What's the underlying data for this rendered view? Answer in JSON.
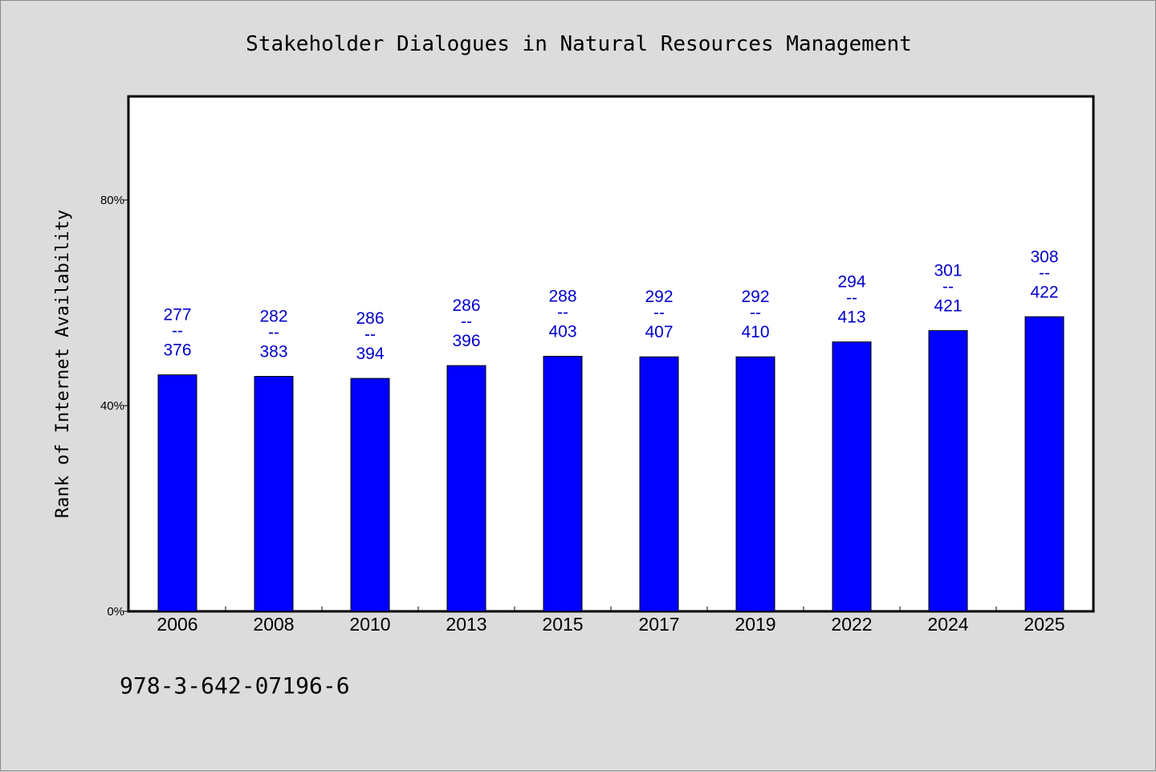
{
  "chart_data": {
    "type": "bar",
    "title": "Stakeholder Dialogues in Natural Resources Management",
    "ylabel": "Rank of Internet Availability",
    "xlabel": "",
    "categories": [
      "2006",
      "2008",
      "2010",
      "2013",
      "2015",
      "2017",
      "2019",
      "2022",
      "2024",
      "2025"
    ],
    "values": [
      46,
      45.7,
      45.3,
      47.8,
      49.6,
      49.5,
      49.5,
      52.4,
      54.6,
      57.3
    ],
    "labels_top": [
      "277",
      "282",
      "286",
      "286",
      "288",
      "292",
      "292",
      "294",
      "301",
      "308"
    ],
    "labels_sep": "--",
    "labels_bottom": [
      "376",
      "383",
      "394",
      "396",
      "403",
      "407",
      "410",
      "413",
      "421",
      "422"
    ],
    "ylim": [
      0,
      100
    ],
    "yticks": [
      0,
      40,
      80
    ],
    "ytick_labels": [
      "0%",
      "40%",
      "80%"
    ],
    "bar_color": "#0000ff",
    "label_color": "#0000cc",
    "grid": false
  },
  "footer": {
    "isbn": "978-3-642-07196-6"
  }
}
